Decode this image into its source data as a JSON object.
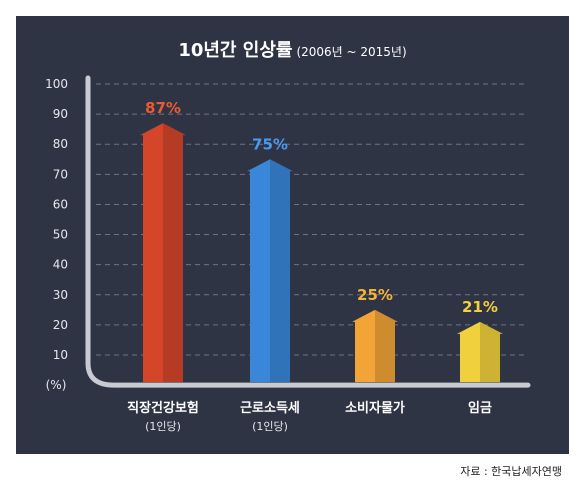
{
  "chart_data": {
    "type": "bar",
    "title": "10년간 인상률",
    "subtitle": "(2006년 ~ 2015년)",
    "ylabel": "(%)",
    "ylim": [
      0,
      100
    ],
    "yticks": [
      10,
      20,
      30,
      40,
      50,
      60,
      70,
      80,
      90,
      100
    ],
    "grid": true,
    "categories": [
      "직장건강보험",
      "근로소득세",
      "소비자물가",
      "임금"
    ],
    "category_sublabels": [
      "(1인당)",
      "(1인당)",
      "",
      ""
    ],
    "values": [
      87,
      75,
      25,
      21
    ],
    "value_labels": [
      "87%",
      "75%",
      "25%",
      "21%"
    ],
    "colors": [
      "#d4452a",
      "#3a86d8",
      "#f2a436",
      "#f0d03c"
    ],
    "label_colors": [
      "#ee5a30",
      "#4a9aef",
      "#f3b23a",
      "#f2d03e"
    ]
  },
  "source": "자료 : 한국납세자연맹"
}
